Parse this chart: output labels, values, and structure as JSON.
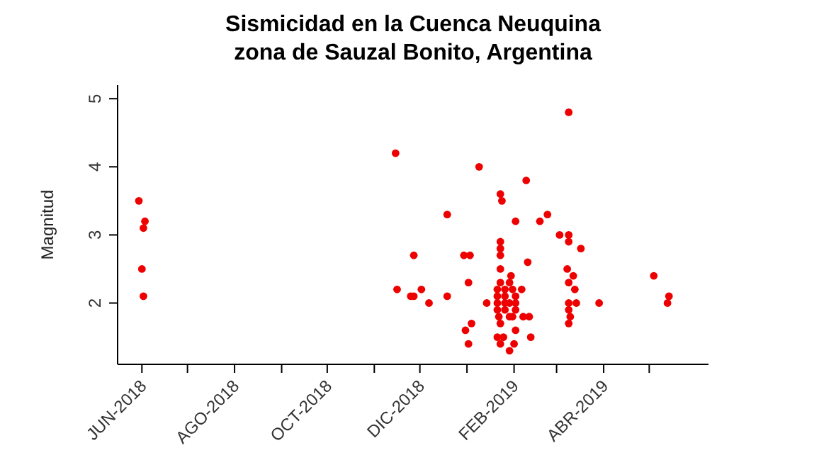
{
  "chart_data": {
    "type": "scatter",
    "title": "Sismicidad en la Cuenca Neuquina\nzona de Sauzal Bonito, Argentina",
    "ylabel": "Magnitud",
    "xlim": [
      "2018-05-16",
      "2019-06-09"
    ],
    "xticks": [
      {
        "value": "2018-06-01",
        "label": "JUN-2018"
      },
      {
        "value": "2018-07-01",
        "label": null
      },
      {
        "value": "2018-08-01",
        "label": "AGO-2018"
      },
      {
        "value": "2018-09-01",
        "label": null
      },
      {
        "value": "2018-10-01",
        "label": "OCT-2018"
      },
      {
        "value": "2018-11-01",
        "label": null
      },
      {
        "value": "2018-12-01",
        "label": "DIC-2018"
      },
      {
        "value": "2019-01-01",
        "label": null
      },
      {
        "value": "2019-02-01",
        "label": "FEB-2019"
      },
      {
        "value": "2019-03-01",
        "label": null
      },
      {
        "value": "2019-04-01",
        "label": "ABR-2019"
      },
      {
        "value": "2019-05-01",
        "label": null
      }
    ],
    "ylim": [
      1.1,
      5.2
    ],
    "yticks": [
      2,
      3,
      4,
      5
    ],
    "grid": false,
    "legend": false,
    "marker": "circle",
    "series": [
      {
        "color": "#ee0000",
        "x": [
          "2018-05-30",
          "2018-06-03",
          "2018-06-02",
          "2018-06-01",
          "2018-06-02",
          "2018-11-15",
          "2018-11-16",
          "2018-11-27",
          "2018-11-25",
          "2018-11-27",
          "2018-12-02",
          "2018-12-07",
          "2019-03-09",
          "2019-01-09",
          "2019-02-09",
          "2019-01-23",
          "2019-01-24",
          "2018-12-19",
          "2019-02-23",
          "2019-02-02",
          "2019-02-18",
          "2019-03-03",
          "2019-03-09",
          "2019-03-09",
          "2019-03-17",
          "2019-01-23",
          "2019-01-23",
          "2018-12-30",
          "2019-01-03",
          "2019-01-23",
          "2019-02-10",
          "2019-01-23",
          "2019-03-08",
          "2019-03-12",
          "2019-05-04",
          "2019-01-30",
          "2019-01-02",
          "2019-01-23",
          "2019-01-29",
          "2019-03-09",
          "2019-01-21",
          "2019-01-26",
          "2019-01-31",
          "2019-02-06",
          "2019-03-13",
          "2018-12-19",
          "2019-01-21",
          "2019-01-26",
          "2019-02-02",
          "2019-05-14",
          "2019-01-14",
          "2019-01-21",
          "2019-01-26",
          "2019-01-29",
          "2019-02-02",
          "2019-03-09",
          "2019-03-14",
          "2019-03-29",
          "2019-05-13",
          "2019-01-21",
          "2019-01-26",
          "2019-02-02",
          "2019-03-09",
          "2019-01-22",
          "2019-01-29",
          "2019-01-31",
          "2019-02-07",
          "2019-02-11",
          "2019-03-10",
          "2019-01-04",
          "2019-01-23",
          "2019-03-09",
          "2018-12-31",
          "2019-02-02",
          "2019-01-21",
          "2019-01-25",
          "2019-02-12",
          "2019-01-02",
          "2019-01-23",
          "2019-02-01",
          "2019-01-29"
        ],
        "values": [
          3.5,
          3.2,
          3.1,
          2.5,
          2.1,
          4.2,
          2.2,
          2.7,
          2.1,
          2.1,
          2.2,
          2.0,
          4.8,
          4.0,
          3.8,
          3.6,
          3.5,
          3.3,
          3.3,
          3.2,
          3.2,
          3.0,
          3.0,
          2.9,
          2.8,
          2.9,
          2.8,
          2.7,
          2.7,
          2.7,
          2.6,
          2.5,
          2.5,
          2.4,
          2.4,
          2.4,
          2.3,
          2.3,
          2.3,
          2.3,
          2.2,
          2.2,
          2.2,
          2.2,
          2.2,
          2.1,
          2.1,
          2.1,
          2.1,
          2.1,
          2.0,
          2.0,
          2.0,
          2.0,
          2.0,
          2.0,
          2.0,
          2.0,
          2.0,
          1.9,
          1.9,
          1.9,
          1.9,
          1.8,
          1.8,
          1.8,
          1.8,
          1.8,
          1.8,
          1.7,
          1.7,
          1.7,
          1.6,
          1.6,
          1.5,
          1.5,
          1.5,
          1.4,
          1.4,
          1.4,
          1.3
        ]
      }
    ]
  }
}
